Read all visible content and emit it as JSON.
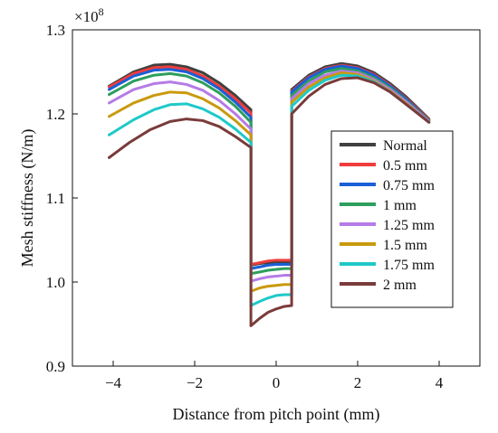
{
  "chart_data": {
    "type": "line",
    "title": "",
    "xlabel": "Distance from  pitch point (mm)",
    "ylabel": "Mesh stiffness (N/m)",
    "y_multiplier_label": "×10",
    "y_multiplier_exponent": "8",
    "xlim": [
      -5,
      5
    ],
    "ylim": [
      0.9,
      1.3
    ],
    "xticks": [
      -4,
      -2,
      0,
      2,
      4
    ],
    "xtick_labels": [
      "−4",
      "−2",
      "0",
      "2",
      "4"
    ],
    "yticks": [
      0.9,
      1.0,
      1.1,
      1.2,
      1.3
    ],
    "ytick_labels": [
      "0.9",
      "1.0",
      "1.1",
      "1.2",
      "1.3"
    ],
    "grid": false,
    "legend_position": "right",
    "transitions": {
      "first_drop_x": -0.62,
      "second_rise_x": 0.38
    },
    "series": [
      {
        "name": "Normal",
        "color": "#404040",
        "segments": [
          {
            "x": [
              -4.1,
              -3.5,
              -3.0,
              -2.6,
              -2.2,
              -1.8,
              -1.4,
              -1.0,
              -0.62
            ],
            "y": [
              1.233,
              1.25,
              1.258,
              1.259,
              1.256,
              1.249,
              1.237,
              1.222,
              1.205
            ]
          },
          {
            "x": [
              -0.62,
              -0.4,
              -0.2,
              0.0,
              0.2,
              0.38
            ],
            "y": [
              1.02,
              1.022,
              1.023,
              1.024,
              1.024,
              1.024
            ]
          },
          {
            "x": [
              0.38,
              0.8,
              1.2,
              1.6,
              2.0,
              2.4,
              2.8,
              3.2,
              3.75
            ],
            "y": [
              1.229,
              1.246,
              1.256,
              1.26,
              1.257,
              1.249,
              1.236,
              1.22,
              1.194
            ]
          }
        ]
      },
      {
        "name": "0.5 mm",
        "color": "#f03c3c",
        "segments": [
          {
            "x": [
              -4.1,
              -3.5,
              -3.0,
              -2.6,
              -2.2,
              -1.8,
              -1.4,
              -1.0,
              -0.62
            ],
            "y": [
              1.232,
              1.248,
              1.255,
              1.256,
              1.253,
              1.245,
              1.233,
              1.218,
              1.201
            ]
          },
          {
            "x": [
              -0.62,
              -0.4,
              -0.2,
              0.0,
              0.2,
              0.38
            ],
            "y": [
              1.021,
              1.023,
              1.025,
              1.026,
              1.026,
              1.026
            ]
          },
          {
            "x": [
              0.38,
              0.8,
              1.2,
              1.6,
              2.0,
              2.4,
              2.8,
              3.2,
              3.75
            ],
            "y": [
              1.227,
              1.244,
              1.254,
              1.258,
              1.255,
              1.247,
              1.234,
              1.218,
              1.193
            ]
          }
        ]
      },
      {
        "name": "0.75 mm",
        "color": "#1a5fd6",
        "segments": [
          {
            "x": [
              -4.1,
              -3.5,
              -3.0,
              -2.6,
              -2.2,
              -1.8,
              -1.4,
              -1.0,
              -0.62
            ],
            "y": [
              1.229,
              1.245,
              1.252,
              1.253,
              1.25,
              1.242,
              1.23,
              1.214,
              1.196
            ]
          },
          {
            "x": [
              -0.62,
              -0.4,
              -0.2,
              0.0,
              0.2,
              0.38
            ],
            "y": [
              1.016,
              1.018,
              1.02,
              1.021,
              1.021,
              1.021
            ]
          },
          {
            "x": [
              0.38,
              0.8,
              1.2,
              1.6,
              2.0,
              2.4,
              2.8,
              3.2,
              3.75
            ],
            "y": [
              1.226,
              1.243,
              1.253,
              1.257,
              1.254,
              1.246,
              1.233,
              1.217,
              1.192
            ]
          }
        ]
      },
      {
        "name": "1 mm",
        "color": "#2e9e5e",
        "segments": [
          {
            "x": [
              -4.1,
              -3.5,
              -3.0,
              -2.6,
              -2.2,
              -1.8,
              -1.4,
              -1.0,
              -0.62
            ],
            "y": [
              1.223,
              1.239,
              1.246,
              1.248,
              1.245,
              1.237,
              1.225,
              1.209,
              1.19
            ]
          },
          {
            "x": [
              -0.62,
              -0.4,
              -0.2,
              0.0,
              0.2,
              0.38
            ],
            "y": [
              1.01,
              1.012,
              1.014,
              1.015,
              1.016,
              1.016
            ]
          },
          {
            "x": [
              0.38,
              0.8,
              1.2,
              1.6,
              2.0,
              2.4,
              2.8,
              3.2,
              3.75
            ],
            "y": [
              1.222,
              1.239,
              1.25,
              1.254,
              1.251,
              1.243,
              1.231,
              1.215,
              1.192
            ]
          }
        ]
      },
      {
        "name": "1.25 mm",
        "color": "#b57be6",
        "segments": [
          {
            "x": [
              -4.1,
              -3.5,
              -3.0,
              -2.6,
              -2.2,
              -1.8,
              -1.4,
              -1.0,
              -0.62
            ],
            "y": [
              1.213,
              1.229,
              1.236,
              1.238,
              1.235,
              1.228,
              1.216,
              1.2,
              1.182
            ]
          },
          {
            "x": [
              -0.62,
              -0.4,
              -0.2,
              0.0,
              0.2,
              0.38
            ],
            "y": [
              1.001,
              1.004,
              1.006,
              1.007,
              1.008,
              1.008
            ]
          },
          {
            "x": [
              0.38,
              0.8,
              1.2,
              1.6,
              2.0,
              2.4,
              2.8,
              3.2,
              3.75
            ],
            "y": [
              1.218,
              1.236,
              1.246,
              1.251,
              1.249,
              1.241,
              1.229,
              1.214,
              1.191
            ]
          }
        ]
      },
      {
        "name": "1.5 mm",
        "color": "#c99a0e",
        "segments": [
          {
            "x": [
              -4.1,
              -3.5,
              -3.0,
              -2.6,
              -2.2,
              -1.8,
              -1.4,
              -1.0,
              -0.62
            ],
            "y": [
              1.197,
              1.213,
              1.222,
              1.226,
              1.225,
              1.218,
              1.207,
              1.192,
              1.175
            ]
          },
          {
            "x": [
              -0.62,
              -0.4,
              -0.2,
              0.0,
              0.2,
              0.38
            ],
            "y": [
              0.989,
              0.993,
              0.995,
              0.996,
              0.997,
              0.997
            ]
          },
          {
            "x": [
              0.38,
              0.8,
              1.2,
              1.6,
              2.0,
              2.4,
              2.8,
              3.2,
              3.75
            ],
            "y": [
              1.214,
              1.232,
              1.243,
              1.249,
              1.247,
              1.239,
              1.227,
              1.212,
              1.19
            ]
          }
        ]
      },
      {
        "name": "1.75 mm",
        "color": "#1ec9c9",
        "segments": [
          {
            "x": [
              -4.1,
              -3.5,
              -3.0,
              -2.6,
              -2.2,
              -1.8,
              -1.4,
              -1.0,
              -0.62
            ],
            "y": [
              1.175,
              1.193,
              1.205,
              1.211,
              1.212,
              1.206,
              1.196,
              1.182,
              1.166
            ]
          },
          {
            "x": [
              -0.62,
              -0.4,
              -0.2,
              0.0,
              0.2,
              0.38
            ],
            "y": [
              0.972,
              0.977,
              0.981,
              0.984,
              0.985,
              0.985
            ]
          },
          {
            "x": [
              0.38,
              0.8,
              1.2,
              1.6,
              2.0,
              2.4,
              2.8,
              3.2,
              3.75
            ],
            "y": [
              1.209,
              1.228,
              1.24,
              1.246,
              1.245,
              1.238,
              1.226,
              1.211,
              1.19
            ]
          }
        ]
      },
      {
        "name": "2 mm",
        "color": "#7a3b3b",
        "segments": [
          {
            "x": [
              -4.1,
              -3.6,
              -3.1,
              -2.6,
              -2.2,
              -1.8,
              -1.4,
              -1.0,
              -0.62
            ],
            "y": [
              1.148,
              1.166,
              1.181,
              1.191,
              1.194,
              1.192,
              1.185,
              1.173,
              1.16
            ]
          },
          {
            "x": [
              -0.62,
              -0.4,
              -0.2,
              0.0,
              0.2,
              0.38
            ],
            "y": [
              0.948,
              0.957,
              0.964,
              0.968,
              0.971,
              0.972
            ]
          },
          {
            "x": [
              0.38,
              0.8,
              1.2,
              1.6,
              2.0,
              2.4,
              2.8,
              3.2,
              3.75
            ],
            "y": [
              1.2,
              1.221,
              1.235,
              1.242,
              1.243,
              1.237,
              1.226,
              1.211,
              1.19
            ]
          }
        ]
      }
    ]
  }
}
